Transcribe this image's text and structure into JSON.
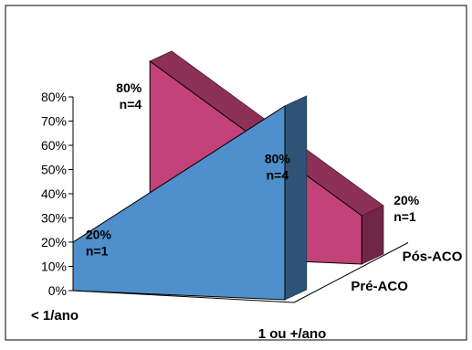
{
  "chart_data": {
    "type": "area",
    "three_d": true,
    "categories": [
      "< 1/ano",
      "1 ou +/ano"
    ],
    "series": [
      {
        "name": "Pós-ACO",
        "values": [
          80,
          20
        ],
        "labels": [
          "80%\nn=4",
          "20%\nn=1"
        ],
        "color": "#c4427a"
      },
      {
        "name": "Pré-ACO",
        "values": [
          20,
          80
        ],
        "labels": [
          "20%\nn=1",
          "80%\nn=4"
        ],
        "color": "#4f8fcb"
      }
    ],
    "y_ticks": [
      "0%",
      "10%",
      "20%",
      "30%",
      "40%",
      "50%",
      "60%",
      "70%",
      "80%"
    ],
    "ylim": [
      0,
      80
    ],
    "grid": false,
    "legend": "none"
  }
}
